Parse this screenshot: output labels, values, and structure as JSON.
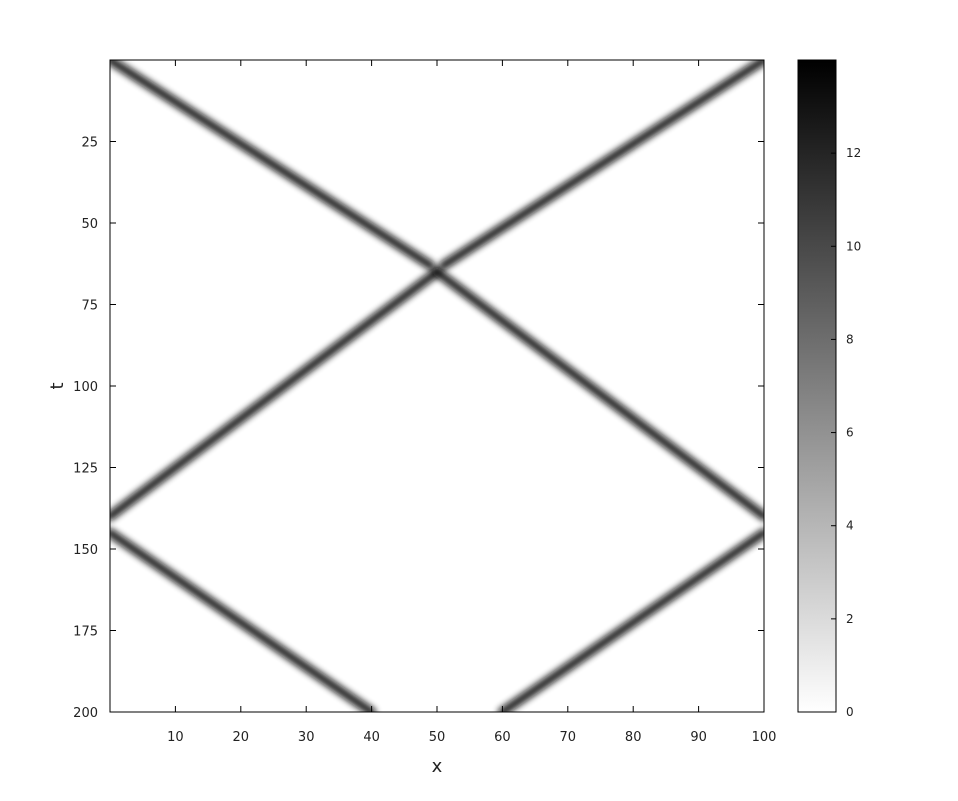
{
  "chart_data": {
    "type": "heatmap",
    "title": "",
    "xlabel": "x",
    "ylabel": "t",
    "xlim": [
      0,
      100
    ],
    "ylim": [
      0,
      200
    ],
    "y_axis_direction": "down",
    "xticks": [
      "10",
      "20",
      "30",
      "40",
      "50",
      "60",
      "70",
      "80",
      "90",
      "100"
    ],
    "yticks": [
      "25",
      "50",
      "75",
      "100",
      "125",
      "150",
      "175",
      "200"
    ],
    "colorbar": {
      "range": [
        0,
        14
      ],
      "ticks": [
        "0",
        "2",
        "4",
        "6",
        "8",
        "10",
        "12"
      ],
      "colormap": "grayscale",
      "low_color": "#ffffff",
      "high_color": "#000000"
    },
    "series": [
      {
        "ridges": [
          {
            "points": [
              [
                0,
                0
              ],
              [
                49,
                63
              ]
            ]
          },
          {
            "points": [
              [
                100,
                0
              ],
              [
                51,
                63
              ]
            ]
          },
          {
            "points": [
              [
                50,
                65
              ],
              [
                0,
                140
              ]
            ]
          },
          {
            "points": [
              [
                50,
                65
              ],
              [
                100,
                140
              ]
            ]
          },
          {
            "points": [
              [
                0,
                145
              ],
              [
                40,
                200
              ]
            ]
          },
          {
            "points": [
              [
                100,
                145
              ],
              [
                60,
                200
              ]
            ]
          }
        ],
        "peak_value": 13.5
      }
    ]
  }
}
